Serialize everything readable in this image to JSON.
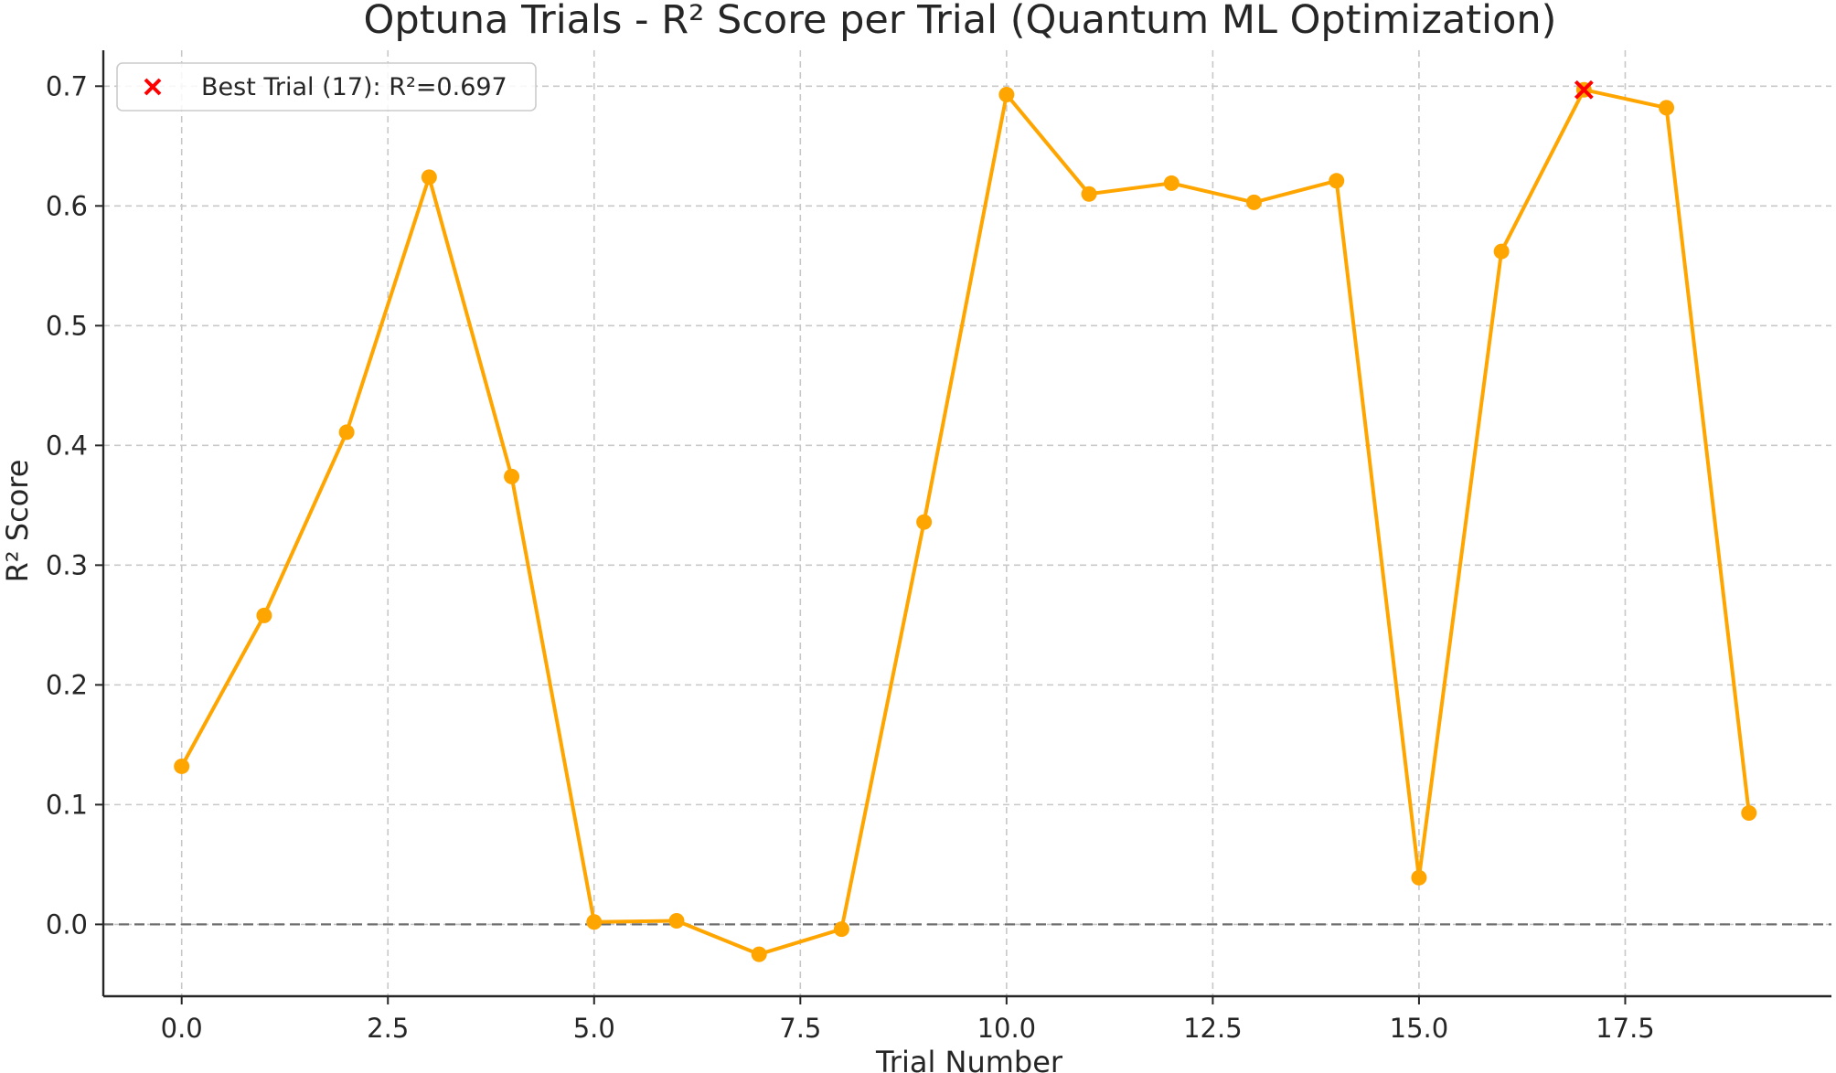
{
  "chart_data": {
    "type": "line",
    "title": "Optuna Trials - R² Score per Trial (Quantum ML Optimization)",
    "xlabel": "Trial Number",
    "ylabel": "R² Score",
    "xlim": [
      -0.95,
      20.0
    ],
    "ylim": [
      -0.06,
      0.73
    ],
    "xticks": [
      0.0,
      2.5,
      5.0,
      7.5,
      10.0,
      12.5,
      15.0,
      17.5
    ],
    "xtick_labels": [
      "0.0",
      "2.5",
      "5.0",
      "7.5",
      "10.0",
      "12.5",
      "15.0",
      "17.5"
    ],
    "yticks": [
      0.0,
      0.1,
      0.2,
      0.3,
      0.4,
      0.5,
      0.6,
      0.7
    ],
    "ytick_labels": [
      "0.0",
      "0.1",
      "0.2",
      "0.3",
      "0.4",
      "0.5",
      "0.6",
      "0.7"
    ],
    "grid": true,
    "reference_line_y": 0.0,
    "series": [
      {
        "color": "#FFA500",
        "marker": "circle",
        "x": [
          0,
          1,
          2,
          3,
          4,
          5,
          6,
          7,
          8,
          9,
          10,
          11,
          12,
          13,
          14,
          15,
          16,
          17,
          18,
          19
        ],
        "values": [
          0.132,
          0.258,
          0.411,
          0.624,
          0.374,
          0.002,
          0.003,
          -0.025,
          -0.004,
          0.336,
          0.693,
          0.61,
          0.619,
          0.603,
          0.621,
          0.039,
          0.562,
          0.697,
          0.682,
          0.093
        ]
      }
    ],
    "highlight": {
      "x": 17,
      "y": 0.697,
      "color": "#FF0000",
      "marker": "x",
      "label": "Best Trial (17): R²=0.697"
    },
    "legend": {
      "position": "top-left",
      "entries": [
        {
          "label": "Best Trial (17): R²=0.697",
          "marker": "x",
          "color": "#FF0000"
        }
      ]
    }
  }
}
